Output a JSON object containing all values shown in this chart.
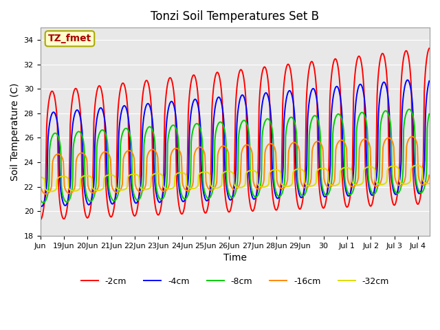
{
  "title": "Tonzi Soil Temperatures Set B",
  "xlabel": "Time",
  "ylabel": "Soil Temperature (C)",
  "ylim": [
    18,
    35
  ],
  "xlim_days": [
    0,
    16.5
  ],
  "annotation_text": "TZ_fmet",
  "annotation_bg": "#ffffcc",
  "annotation_border": "#aaaa00",
  "annotation_textcolor": "#aa0000",
  "bg_color": "#e8e8e8",
  "series_colors": [
    "#ff0000",
    "#0000ff",
    "#00cc00",
    "#ff8800",
    "#dddd00"
  ],
  "series_labels": [
    "-2cm",
    "-4cm",
    "-8cm",
    "-16cm",
    "-32cm"
  ],
  "xtick_labels": [
    "Jun",
    "19Jun",
    "20Jun",
    "21Jun",
    "22Jun",
    "23Jun",
    "24Jun",
    "25Jun",
    "26Jun",
    "27Jun",
    "28Jun",
    "29Jun",
    "30",
    "Jul 1",
    "Jul 2",
    "Jul 3",
    "Jul 4"
  ],
  "xtick_positions": [
    0,
    1,
    2,
    3,
    4,
    5,
    6,
    7,
    8,
    9,
    10,
    11,
    12,
    13,
    14,
    15,
    16
  ],
  "grid_color": "#ffffff",
  "linewidth": 1.4
}
